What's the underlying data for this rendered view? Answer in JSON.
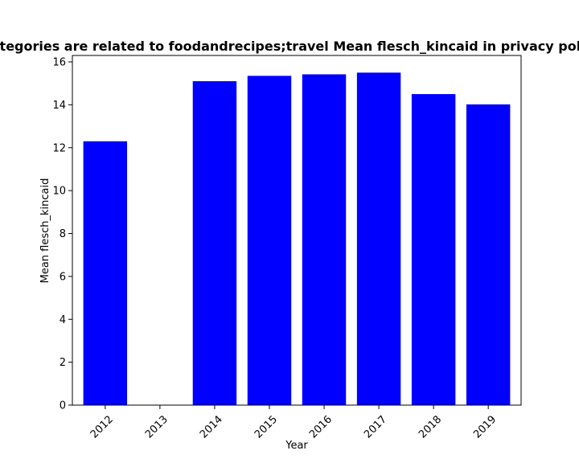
{
  "chart_data": {
    "type": "bar",
    "title": "Categories are related to foodandrecipes;travel Mean flesch_kincaid in privacy policies",
    "xlabel": "Year",
    "ylabel": "Mean flesch_kincaid",
    "categories": [
      "2012",
      "2013",
      "2014",
      "2015",
      "2016",
      "2017",
      "2018",
      "2019"
    ],
    "values": [
      12.3,
      0,
      15.1,
      15.35,
      15.42,
      15.5,
      14.5,
      14.02
    ],
    "ylim": [
      0,
      16.3
    ],
    "yticks": [
      "0",
      "2",
      "4",
      "6",
      "8",
      "10",
      "12",
      "14",
      "16"
    ],
    "bar_color": "#0000ff",
    "grid": false,
    "x_tick_rotation": 45
  }
}
